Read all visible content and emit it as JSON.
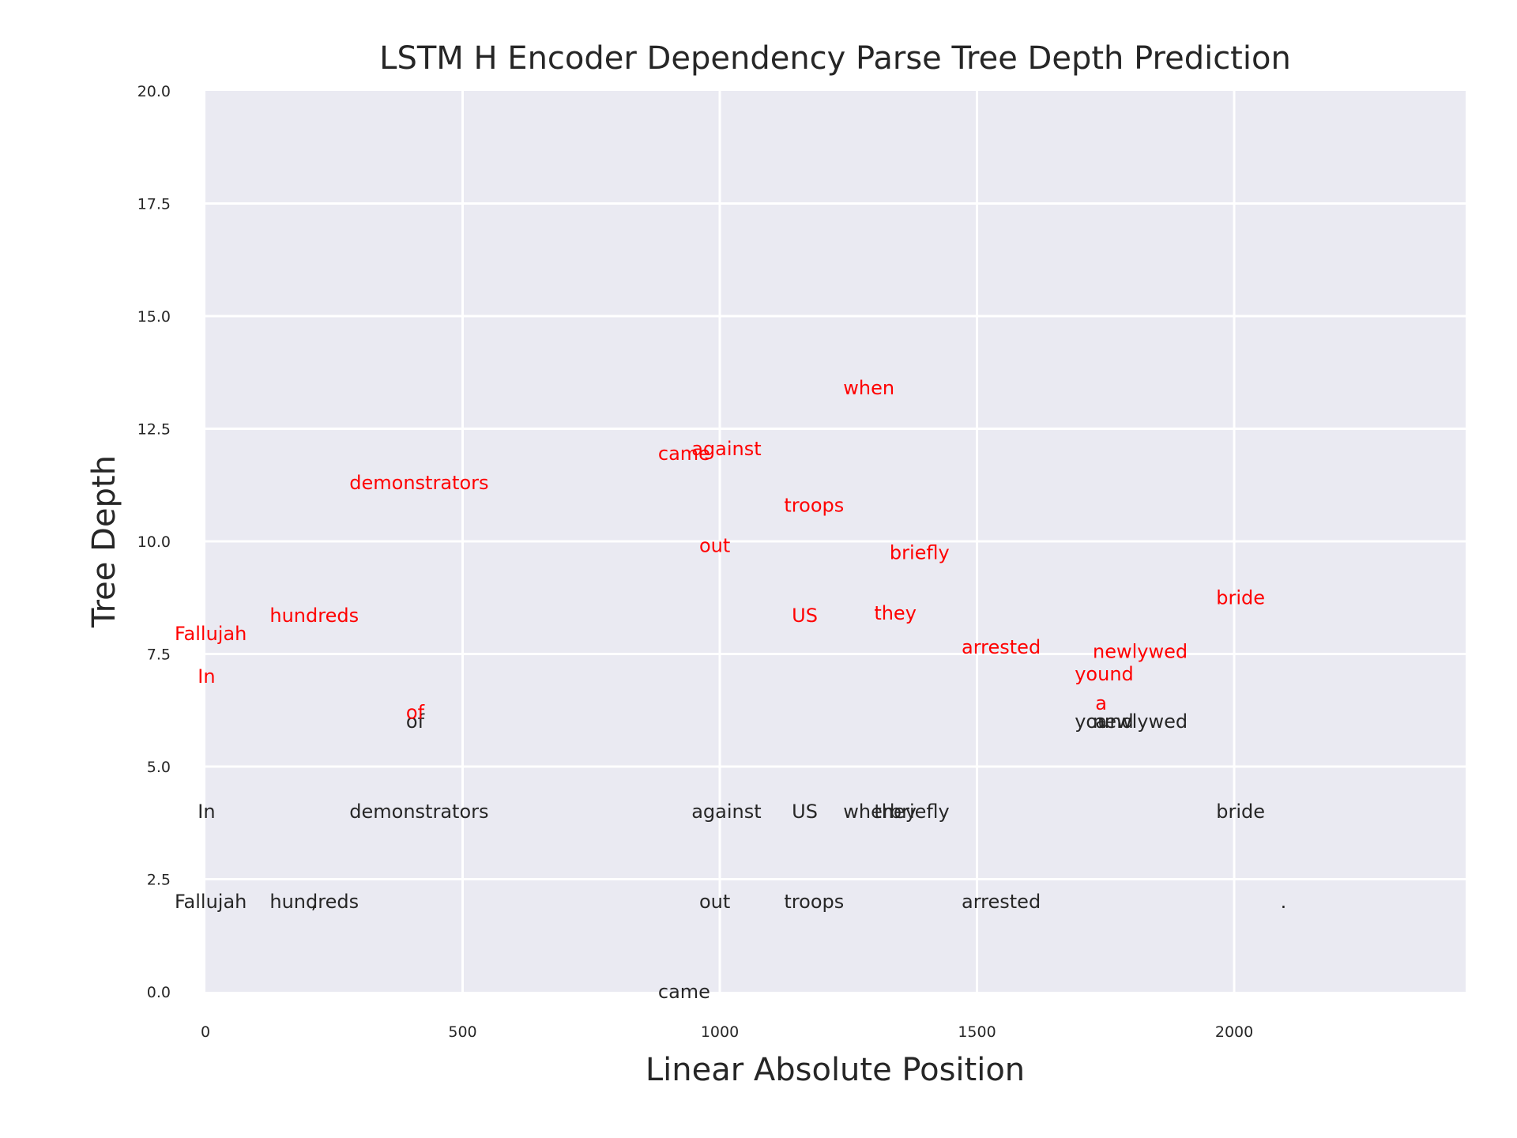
{
  "chart_data": {
    "type": "scatter",
    "title": "LSTM H Encoder Dependency Parse Tree Depth Prediction",
    "xlabel": "Linear Absolute Position",
    "ylabel": "Tree Depth",
    "xlim": [
      0,
      2450
    ],
    "ylim": [
      0,
      20
    ],
    "xticks": [
      0,
      500,
      1000,
      1500,
      2000
    ],
    "xtick_labels": [
      "0",
      "500",
      "1000",
      "1500",
      "2000"
    ],
    "yticks": [
      0,
      2.5,
      5,
      7.5,
      10,
      12.5,
      15,
      17.5,
      20
    ],
    "ytick_labels": [
      "0.0",
      "2.5",
      "5.0",
      "7.5",
      "10.0",
      "12.5",
      "15.0",
      "17.5",
      "20.0"
    ],
    "grid": true,
    "background": "#eaeaf2",
    "series": [
      {
        "color": "#262626",
        "points": [
          {
            "label": "In",
            "x": -15,
            "y": 4
          },
          {
            "label": "Fallujah",
            "x": -60,
            "y": 2
          },
          {
            "label": ",",
            "x": 205,
            "y": 2
          },
          {
            "label": "hundreds",
            "x": 125,
            "y": 2
          },
          {
            "label": "of",
            "x": 390,
            "y": 6
          },
          {
            "label": "demonstrators",
            "x": 280,
            "y": 4
          },
          {
            "label": "came",
            "x": 880,
            "y": 0
          },
          {
            "label": "out",
            "x": 960,
            "y": 2
          },
          {
            "label": "against",
            "x": 945,
            "y": 4
          },
          {
            "label": "US",
            "x": 1140,
            "y": 4
          },
          {
            "label": "troops",
            "x": 1125,
            "y": 2
          },
          {
            "label": "when",
            "x": 1240,
            "y": 4
          },
          {
            "label": "they",
            "x": 1300,
            "y": 4
          },
          {
            "label": "briefly",
            "x": 1330,
            "y": 4
          },
          {
            "label": "arrested",
            "x": 1470,
            "y": 2
          },
          {
            "label": "a",
            "x": 1730,
            "y": 6
          },
          {
            "label": "yound",
            "x": 1690,
            "y": 6
          },
          {
            "label": "newlywed",
            "x": 1725,
            "y": 6
          },
          {
            "label": "bride",
            "x": 1965,
            "y": 4
          },
          {
            "label": ".",
            "x": 2090,
            "y": 2
          }
        ]
      },
      {
        "color": "#ff0000",
        "points": [
          {
            "label": "In",
            "x": -15,
            "y": 7
          },
          {
            "label": "Fallujah",
            "x": -60,
            "y": 7.95
          },
          {
            "label": "hundreds",
            "x": 125,
            "y": 8.35
          },
          {
            "label": "of",
            "x": 390,
            "y": 6.2
          },
          {
            "label": "demonstrators",
            "x": 280,
            "y": 11.3
          },
          {
            "label": "came",
            "x": 880,
            "y": 11.95
          },
          {
            "label": "against",
            "x": 945,
            "y": 12.05
          },
          {
            "label": "out",
            "x": 960,
            "y": 9.9
          },
          {
            "label": "troops",
            "x": 1125,
            "y": 10.8
          },
          {
            "label": "US",
            "x": 1140,
            "y": 8.35
          },
          {
            "label": "when",
            "x": 1240,
            "y": 13.4
          },
          {
            "label": "they",
            "x": 1300,
            "y": 8.4
          },
          {
            "label": "briefly",
            "x": 1330,
            "y": 9.75
          },
          {
            "label": "arrested",
            "x": 1470,
            "y": 7.65
          },
          {
            "label": "newlywed",
            "x": 1725,
            "y": 7.55
          },
          {
            "label": "yound",
            "x": 1690,
            "y": 7.05
          },
          {
            "label": "a",
            "x": 1730,
            "y": 6.4
          },
          {
            "label": "bride",
            "x": 1965,
            "y": 8.75
          }
        ]
      }
    ]
  }
}
